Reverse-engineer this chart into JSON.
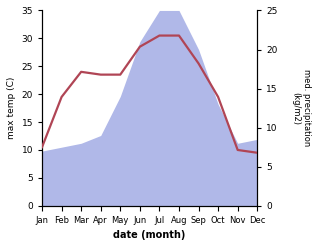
{
  "months": [
    "Jan",
    "Feb",
    "Mar",
    "Apr",
    "May",
    "Jun",
    "Jul",
    "Aug",
    "Sep",
    "Oct",
    "Nov",
    "Dec"
  ],
  "temperature": [
    10.5,
    19.5,
    24.0,
    23.5,
    23.5,
    28.5,
    30.5,
    30.5,
    25.5,
    19.5,
    10.0,
    9.5
  ],
  "precipitation": [
    7.0,
    7.5,
    8.0,
    9.0,
    14.0,
    21.0,
    25.0,
    25.0,
    20.0,
    13.0,
    8.0,
    8.5
  ],
  "temp_color": "#b04555",
  "precip_fill_color": "#b0b8e8",
  "temp_ylim": [
    0,
    35
  ],
  "precip_ylim": [
    0,
    25
  ],
  "xlabel": "date (month)",
  "ylabel_left": "max temp (C)",
  "ylabel_right": "med. precipitation\n(kg/m2)",
  "temp_yticks": [
    0,
    5,
    10,
    15,
    20,
    25,
    30,
    35
  ],
  "precip_yticks": [
    0,
    5,
    10,
    15,
    20,
    25
  ],
  "bg_color": "#ffffff"
}
